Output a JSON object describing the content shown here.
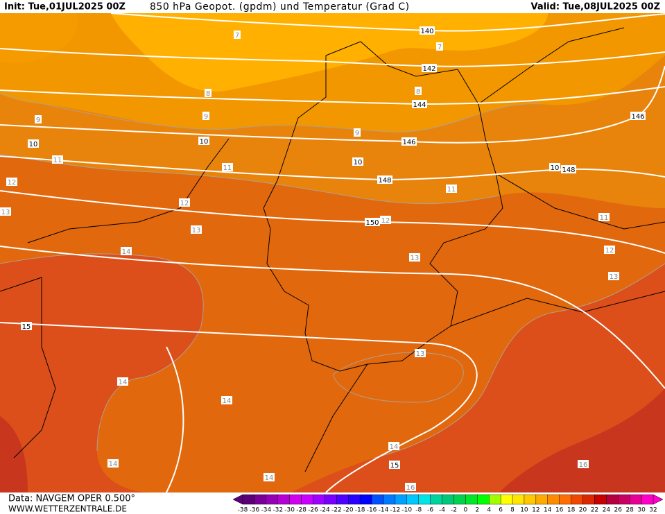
{
  "header": {
    "init": "Init: Tue,01JUL2025 00Z",
    "title": "850 hPa Geopot. (gpdm) und Temperatur (Grad C)",
    "valid": "Valid: Tue,08JUL2025 00Z"
  },
  "footer": {
    "data": "Data: NAVGEM OPER 0.500°",
    "site": "WWW.WETTERZENTRALE.DE"
  },
  "map": {
    "temperature_labels": [
      "7",
      "7",
      "8",
      "8",
      "9",
      "9",
      "9",
      "11",
      "11",
      "11",
      "11",
      "12",
      "12",
      "12",
      "12",
      "13",
      "13",
      "13",
      "13",
      "13",
      "14",
      "14",
      "14",
      "14",
      "14",
      "14",
      "16",
      "16"
    ],
    "isotherm_labels": [
      "10",
      "10",
      "10",
      "10",
      "15",
      "15"
    ],
    "geopotential_labels": [
      "140",
      "142",
      "144",
      "146",
      "146",
      "148",
      "148",
      "150"
    ]
  },
  "legend": {
    "labels": [
      -38,
      -36,
      -34,
      -32,
      -30,
      -28,
      -26,
      -24,
      -22,
      -20,
      -18,
      -16,
      -14,
      -12,
      -10,
      -8,
      -6,
      -4,
      -2,
      0,
      2,
      4,
      6,
      8,
      10,
      12,
      14,
      16,
      18,
      20,
      22,
      24,
      26,
      28,
      30,
      32
    ],
    "colors": [
      "#5a0078",
      "#780096",
      "#9600b4",
      "#b400d2",
      "#d200f0",
      "#c800ff",
      "#a000ff",
      "#7800ff",
      "#5000ff",
      "#2800ff",
      "#0000ff",
      "#0050ff",
      "#0078ff",
      "#00a0ff",
      "#00c8ff",
      "#00e6e6",
      "#00d2a0",
      "#00c878",
      "#00d250",
      "#00e628",
      "#00ff00",
      "#a0ff00",
      "#ffff00",
      "#ffe600",
      "#ffc800",
      "#ffaa00",
      "#ff8c00",
      "#ff6e00",
      "#f04600",
      "#dc2800",
      "#c80000",
      "#b4003c",
      "#c80064",
      "#e60096",
      "#ff00c8"
    ]
  }
}
